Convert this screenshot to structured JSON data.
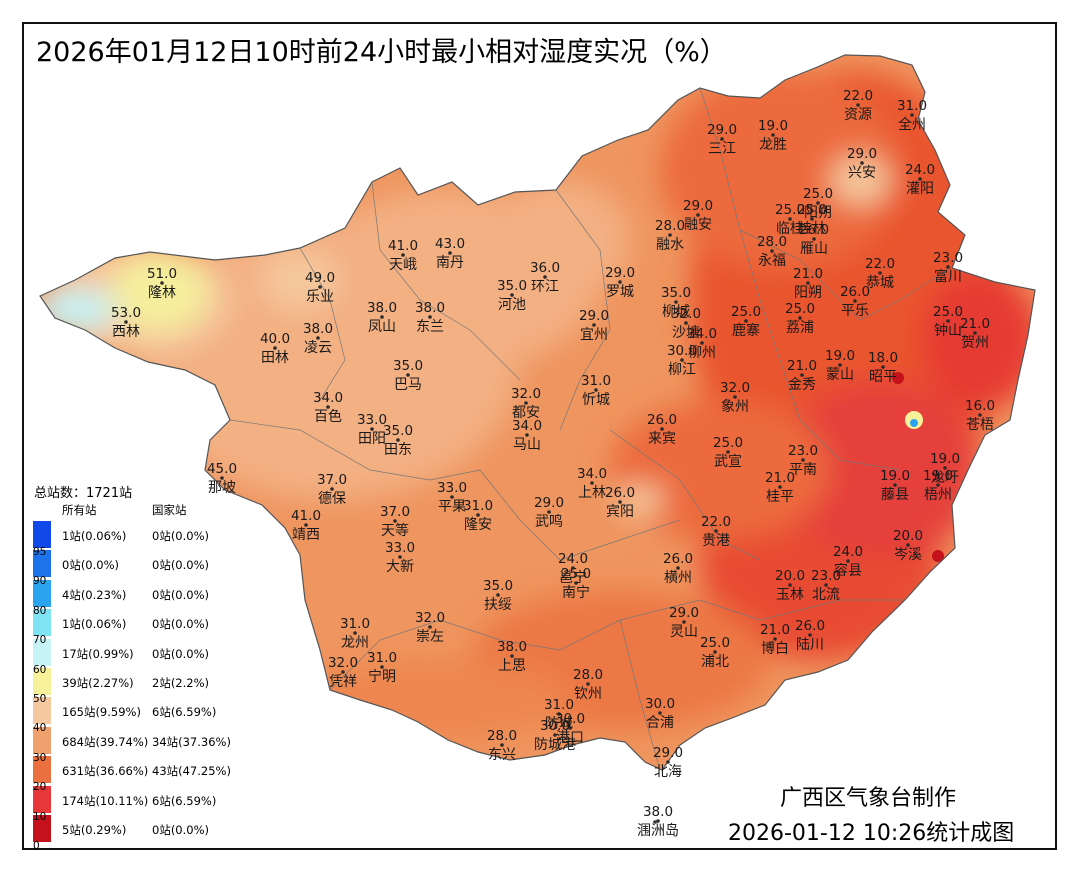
{
  "title": "2026年01月12日10时前24小时最小相对湿度实况（%）",
  "legend": {
    "total": "总站数：1721站",
    "col_all": "所有站",
    "col_nat": "国家站",
    "rows": [
      {
        "color": "#1148e8",
        "all": "1站(0.06%)",
        "nat": "0站(0.0%)"
      },
      {
        "color": "#1d73ea",
        "all": "0站(0.0%)",
        "nat": "0站(0.0%)"
      },
      {
        "color": "#2ba4ef",
        "all": "4站(0.23%)",
        "nat": "0站(0.0%)"
      },
      {
        "color": "#7fe3f4",
        "all": "1站(0.06%)",
        "nat": "0站(0.0%)"
      },
      {
        "color": "#c6f3f5",
        "all": "17站(0.99%)",
        "nat": "0站(0.0%)"
      },
      {
        "color": "#f7f29a",
        "all": "39站(2.27%)",
        "nat": "2站(2.2%)"
      },
      {
        "color": "#f6c8a0",
        "all": "165站(9.59%)",
        "nat": "6站(6.59%)"
      },
      {
        "color": "#f0a06d",
        "all": "684站(39.74%)",
        "nat": "34站(37.36%)"
      },
      {
        "color": "#ea7040",
        "all": "631站(36.66%)",
        "nat": "43站(47.25%)"
      },
      {
        "color": "#e8373a",
        "all": "174站(10.11%)",
        "nat": "6站(6.59%)"
      },
      {
        "color": "#c4111c",
        "all": "5站(0.29%)",
        "nat": "0站(0.0%)"
      }
    ],
    "thresholds": [
      "95",
      "90",
      "80",
      "70",
      "60",
      "50",
      "40",
      "30",
      "20",
      "10",
      "0"
    ]
  },
  "stations": [
    {
      "name": "资源",
      "value": "22.0"
    },
    {
      "name": "全州",
      "value": "31.0"
    },
    {
      "name": "三江",
      "value": "29.0"
    },
    {
      "name": "龙胜",
      "value": "19.0"
    },
    {
      "name": "兴安",
      "value": "29.0"
    },
    {
      "name": "灌阳",
      "value": "24.0"
    },
    {
      "name": "阳朔",
      "value": "25.0"
    },
    {
      "name": "桂林",
      "value": "25.0"
    },
    {
      "name": "临桂",
      "value": "25.0"
    },
    {
      "name": "雁山",
      "value": "26.0"
    },
    {
      "name": "融安",
      "value": "29.0"
    },
    {
      "name": "融水",
      "value": "28.0"
    },
    {
      "name": "永福",
      "value": "28.0"
    },
    {
      "name": "恭城",
      "value": "22.0"
    },
    {
      "name": "富川",
      "value": "23.0"
    },
    {
      "name": "隆林",
      "value": "51.0"
    },
    {
      "name": "西林",
      "value": "53.0"
    },
    {
      "name": "天峨",
      "value": "41.0"
    },
    {
      "name": "南丹",
      "value": "43.0"
    },
    {
      "name": "乐业",
      "value": "49.0"
    },
    {
      "name": "环江",
      "value": "36.0"
    },
    {
      "name": "河池",
      "value": "35.0"
    },
    {
      "name": "罗城",
      "value": "29.0"
    },
    {
      "name": "平乐",
      "value": "26.0"
    },
    {
      "name": "阳朔",
      "value": "21.0"
    },
    {
      "name": "钟山",
      "value": "25.0"
    },
    {
      "name": "贺州",
      "value": "21.0"
    },
    {
      "name": "凤山",
      "value": "38.0"
    },
    {
      "name": "东兰",
      "value": "38.0"
    },
    {
      "name": "柳城",
      "value": "35.0"
    },
    {
      "name": "柳州",
      "value": "34.0"
    },
    {
      "name": "沙塘",
      "value": "32.0"
    },
    {
      "name": "宜州",
      "value": "29.0"
    },
    {
      "name": "鹿寨",
      "value": "25.0"
    },
    {
      "name": "荔浦",
      "value": "25.0"
    },
    {
      "name": "田林",
      "value": "40.0"
    },
    {
      "name": "凌云",
      "value": "38.0"
    },
    {
      "name": "柳江",
      "value": "30.0"
    },
    {
      "name": "巴马",
      "value": "35.0"
    },
    {
      "name": "金秀",
      "value": "21.0"
    },
    {
      "name": "蒙山",
      "value": "19.0"
    },
    {
      "name": "昭平",
      "value": "18.0"
    },
    {
      "name": "忻城",
      "value": "31.0"
    },
    {
      "name": "象州",
      "value": "32.0"
    },
    {
      "name": "都安",
      "value": "32.0"
    },
    {
      "name": "百色",
      "value": "34.0"
    },
    {
      "name": "苍梧",
      "value": "16.0"
    },
    {
      "name": "马山",
      "value": "34.0"
    },
    {
      "name": "田阳",
      "value": "33.0"
    },
    {
      "name": "田东",
      "value": "35.0"
    },
    {
      "name": "来宾",
      "value": "26.0"
    },
    {
      "name": "武宣",
      "value": "25.0"
    },
    {
      "name": "平南",
      "value": "23.0"
    },
    {
      "name": "那坡",
      "value": "45.0"
    },
    {
      "name": "德保",
      "value": "37.0"
    },
    {
      "name": "桂平",
      "value": "21.0"
    },
    {
      "name": "藤县",
      "value": "19.0"
    },
    {
      "name": "梧州",
      "value": "19.0"
    },
    {
      "name": "龙圩",
      "value": "19.0"
    },
    {
      "name": "上林",
      "value": "34.0"
    },
    {
      "name": "平果",
      "value": "33.0"
    },
    {
      "name": "隆安",
      "value": "31.0"
    },
    {
      "name": "宾阳",
      "value": "26.0"
    },
    {
      "name": "靖西",
      "value": "41.0"
    },
    {
      "name": "天等",
      "value": "37.0"
    },
    {
      "name": "武鸣",
      "value": "29.0"
    },
    {
      "name": "贵港",
      "value": "22.0"
    },
    {
      "name": "岑溪",
      "value": "20.0"
    },
    {
      "name": "大新",
      "value": "33.0"
    },
    {
      "name": "南宁",
      "value": "25.0"
    },
    {
      "name": "邕宁",
      "value": "24.0"
    },
    {
      "name": "横州",
      "value": "26.0"
    },
    {
      "name": "容县",
      "value": "24.0"
    },
    {
      "name": "玉林",
      "value": "20.0"
    },
    {
      "name": "北流",
      "value": "23.0"
    },
    {
      "name": "扶绥",
      "value": "35.0"
    },
    {
      "name": "龙州",
      "value": "31.0"
    },
    {
      "name": "崇左",
      "value": "32.0"
    },
    {
      "name": "灵山",
      "value": "29.0"
    },
    {
      "name": "浦北",
      "value": "25.0"
    },
    {
      "name": "博白",
      "value": "21.0"
    },
    {
      "name": "陆川",
      "value": "26.0"
    },
    {
      "name": "凭祥",
      "value": "32.0"
    },
    {
      "name": "宁明",
      "value": "31.0"
    },
    {
      "name": "上思",
      "value": "38.0"
    },
    {
      "name": "钦州",
      "value": "28.0"
    },
    {
      "name": "防城",
      "value": "31.0"
    },
    {
      "name": "港口",
      "value": "30.0"
    },
    {
      "name": "防城港",
      "value": "30.0"
    },
    {
      "name": "合浦",
      "value": "30.0"
    },
    {
      "name": "东兴",
      "value": "28.0"
    },
    {
      "name": "北海",
      "value": "29.0"
    },
    {
      "name": "涠洲岛",
      "value": "38.0"
    }
  ],
  "credit": "广西区气象台制作",
  "stamp": "2026-01-12 10:26统计成图"
}
